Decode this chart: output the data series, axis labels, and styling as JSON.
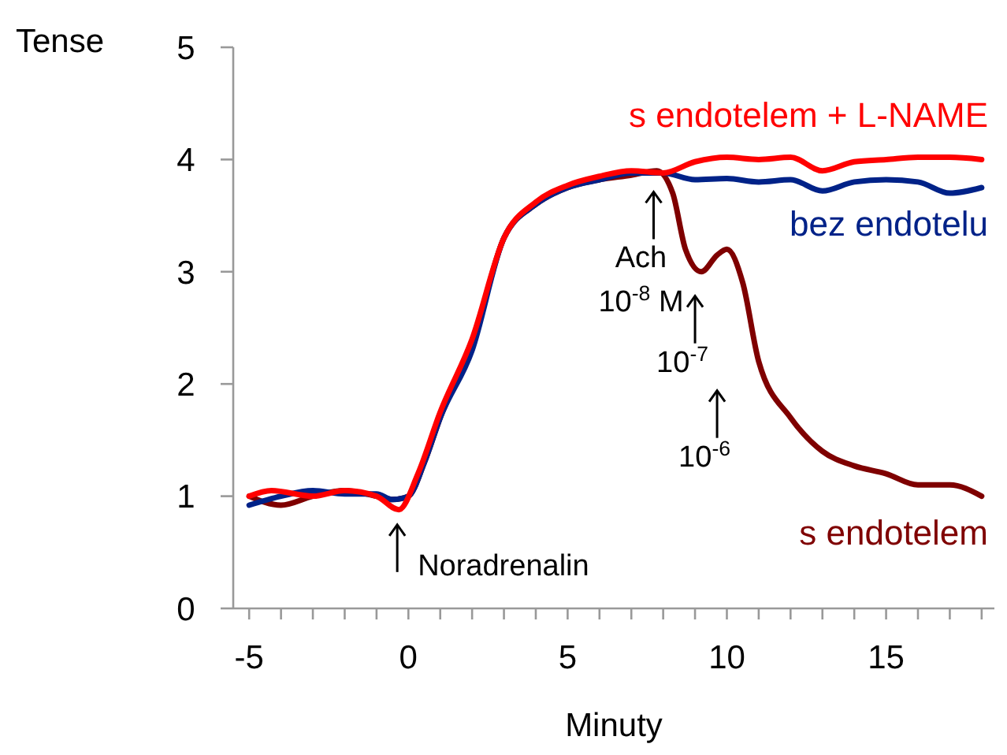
{
  "chart_data": {
    "type": "line",
    "xlabel": "Minuty",
    "ylabel": "Tense",
    "xlim": [
      -5.5,
      18.4
    ],
    "ylim": [
      0,
      5
    ],
    "xticks": [
      -5,
      {
        "value": -4,
        "label": null
      },
      {
        "value": -3,
        "label": null
      },
      {
        "value": -2,
        "label": null
      },
      {
        "value": -1,
        "label": null
      },
      0,
      {
        "value": 1,
        "label": null
      },
      {
        "value": 2,
        "label": null
      },
      {
        "value": 3,
        "label": null
      },
      {
        "value": 4,
        "label": null
      },
      5,
      {
        "value": 6,
        "label": null
      },
      {
        "value": 7,
        "label": null
      },
      {
        "value": 8,
        "label": null
      },
      {
        "value": 9,
        "label": null
      },
      10,
      {
        "value": 11,
        "label": null
      },
      {
        "value": 12,
        "label": null
      },
      {
        "value": 13,
        "label": null
      },
      {
        "value": 14,
        "label": null
      },
      15,
      {
        "value": 16,
        "label": null
      },
      {
        "value": 17,
        "label": null
      },
      {
        "value": 18,
        "label": null
      }
    ],
    "yticks": [
      0,
      1,
      2,
      3,
      4,
      5
    ],
    "grid": false,
    "legend": false,
    "marker": "none",
    "line_style": "solid",
    "series": [
      {
        "name": "s endotelem",
        "color": "#7f0000",
        "x": [
          -5,
          -4,
          -3,
          -2,
          -1,
          -0.5,
          0,
          0.5,
          1,
          2,
          3,
          4,
          5,
          6,
          7,
          7.8,
          8.3,
          8.7,
          9.2,
          9.7,
          10,
          10.5,
          11,
          12,
          13,
          14,
          15,
          16,
          17,
          18
        ],
        "values": [
          1.0,
          0.92,
          1.0,
          1.05,
          1.0,
          0.97,
          1.0,
          1.3,
          1.7,
          2.35,
          3.3,
          3.6,
          3.75,
          3.82,
          3.86,
          3.9,
          3.7,
          3.2,
          3.0,
          3.15,
          3.2,
          2.9,
          2.2,
          1.7,
          1.4,
          1.27,
          1.2,
          1.1,
          1.1,
          1.0
        ]
      },
      {
        "name": "bez endotelu",
        "color": "#002288",
        "x": [
          -5,
          -4,
          -3,
          -2,
          -1,
          -0.5,
          0,
          0.5,
          1,
          2,
          3,
          4,
          5,
          6,
          7,
          8,
          9,
          10,
          11,
          12,
          13,
          14,
          15,
          16,
          17,
          18
        ],
        "values": [
          0.92,
          1.0,
          1.05,
          1.02,
          1.02,
          0.97,
          1.0,
          1.3,
          1.7,
          2.3,
          3.3,
          3.6,
          3.75,
          3.82,
          3.88,
          3.88,
          3.82,
          3.83,
          3.8,
          3.82,
          3.72,
          3.8,
          3.82,
          3.8,
          3.7,
          3.75
        ]
      },
      {
        "name": "s endotelem + L-NAME",
        "color": "#ff0000",
        "x": [
          -5,
          -4.3,
          -3,
          -2,
          -1,
          -0.3,
          0.3,
          1,
          2,
          3,
          4,
          5,
          6,
          7,
          8,
          9,
          10,
          11,
          12,
          13,
          14,
          15,
          16,
          17,
          18
        ],
        "values": [
          1.0,
          1.05,
          1.0,
          1.05,
          1.0,
          0.88,
          1.2,
          1.75,
          2.4,
          3.3,
          3.62,
          3.77,
          3.85,
          3.9,
          3.88,
          3.98,
          4.02,
          4.0,
          4.02,
          3.9,
          3.98,
          4.0,
          4.02,
          4.02,
          4.0
        ]
      }
    ],
    "annotations": [
      {
        "text": "Noradrenalin",
        "x": -0.35,
        "y": 0.9
      },
      {
        "text": "Ach\n10$^{-8}$ M",
        "x": 7.7,
        "y": 3.88
      },
      {
        "text": "10$^{-7}$",
        "x": 9.0,
        "y": 3.05
      },
      "10$^{-6}$"
    ]
  }
}
